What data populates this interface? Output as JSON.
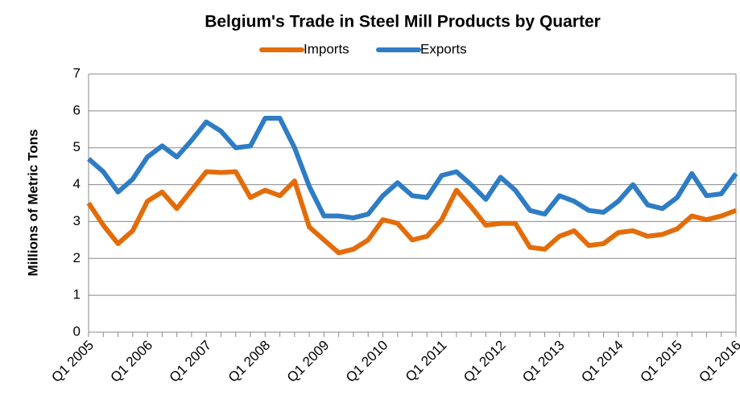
{
  "chart_data": {
    "type": "line",
    "title": "Belgium's Trade in Steel Mill Products by Quarter",
    "y_label": "Millions of Metric Tons",
    "categories": [
      "Q1 2005",
      null,
      null,
      null,
      "Q1 2006",
      null,
      null,
      null,
      "Q1 2007",
      null,
      null,
      null,
      "Q1 2008",
      null,
      null,
      null,
      "Q1 2009",
      null,
      null,
      null,
      "Q1 2010",
      null,
      null,
      null,
      "Q1 2011",
      null,
      null,
      null,
      "Q1 2012",
      null,
      null,
      null,
      "Q1 2013",
      null,
      null,
      null,
      "Q1 2014",
      null,
      null,
      null,
      "Q1 2015",
      null,
      null,
      null,
      "Q1 2016"
    ],
    "series": [
      {
        "name": "Imports",
        "color": "#e36c09",
        "values": [
          3.5,
          2.9,
          2.4,
          2.75,
          3.55,
          3.8,
          3.35,
          3.85,
          4.35,
          4.33,
          4.35,
          3.65,
          3.85,
          3.7,
          4.1,
          2.85,
          2.5,
          2.15,
          2.25,
          2.5,
          3.05,
          2.95,
          2.5,
          2.6,
          3.05,
          3.85,
          3.4,
          2.9,
          2.95,
          2.95,
          2.3,
          2.25,
          2.6,
          2.75,
          2.35,
          2.4,
          2.7,
          2.75,
          2.6,
          2.65,
          2.8,
          3.15,
          3.05,
          3.15,
          3.3
        ]
      },
      {
        "name": "Exports",
        "color": "#2e7cc4",
        "values": [
          4.7,
          4.35,
          3.8,
          4.15,
          4.75,
          5.05,
          4.75,
          5.2,
          5.7,
          5.45,
          5.0,
          5.05,
          5.8,
          5.8,
          5.0,
          3.95,
          3.15,
          3.15,
          3.1,
          3.2,
          3.7,
          4.05,
          3.7,
          3.65,
          4.25,
          4.35,
          4.0,
          3.6,
          4.2,
          3.85,
          3.3,
          3.2,
          3.7,
          3.55,
          3.3,
          3.25,
          3.55,
          4.0,
          3.45,
          3.35,
          3.65,
          4.3,
          3.7,
          3.75,
          4.3
        ]
      }
    ],
    "ylim": [
      0,
      7
    ],
    "yticks": [
      0,
      1,
      2,
      3,
      4,
      5,
      6,
      7
    ],
    "grid": true,
    "legend": "top"
  }
}
